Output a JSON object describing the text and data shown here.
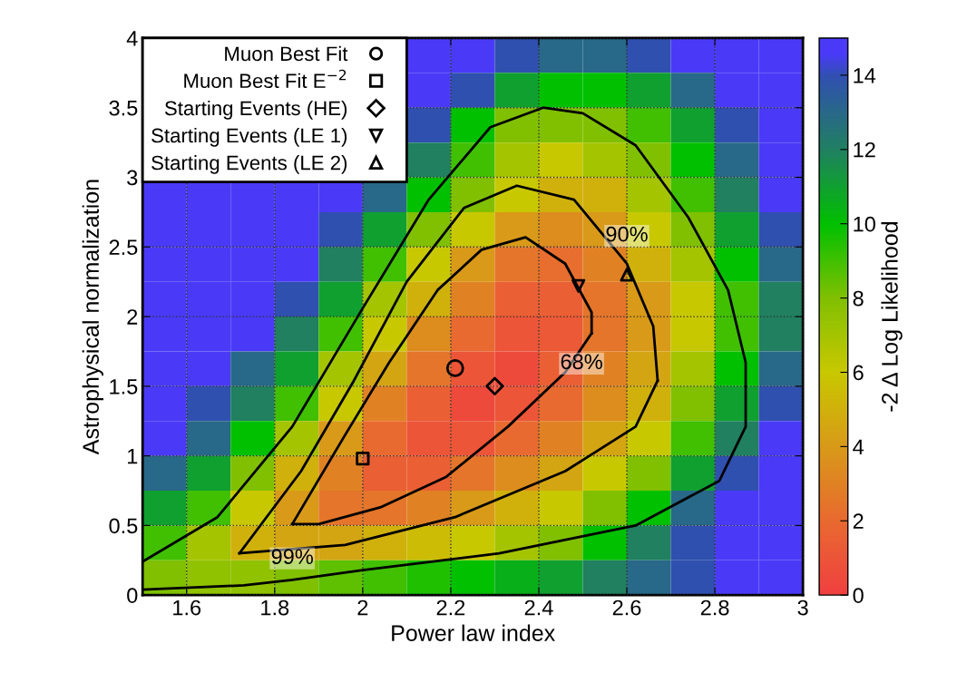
{
  "chart_data": {
    "type": "heatmap",
    "xlabel": "Power law index",
    "ylabel": "Astrophysical normalization",
    "clabel": "-2 Δ Log Likelihood",
    "x": [
      1.55,
      1.65,
      1.75,
      1.85,
      1.95,
      2.05,
      2.15,
      2.25,
      2.35,
      2.45,
      2.55,
      2.65,
      2.75,
      2.85,
      2.95
    ],
    "y": [
      3.875,
      3.625,
      3.375,
      3.125,
      2.875,
      2.625,
      2.375,
      2.125,
      1.875,
      1.625,
      1.375,
      1.125,
      0.875,
      0.625,
      0.375,
      0.125
    ],
    "cells": [
      [
        null,
        null,
        null,
        null,
        null,
        null,
        15,
        15,
        14,
        13,
        13,
        14,
        15,
        15,
        15
      ],
      [
        null,
        null,
        null,
        null,
        null,
        null,
        15,
        14,
        11,
        10,
        10,
        11,
        13,
        15,
        15
      ],
      [
        null,
        null,
        null,
        null,
        null,
        null,
        14,
        10,
        8,
        8,
        8,
        9,
        11,
        14,
        15
      ],
      [
        null,
        null,
        null,
        null,
        null,
        null,
        12,
        9,
        7,
        6,
        7,
        8,
        10,
        13,
        15
      ],
      [
        15,
        15,
        15,
        15,
        15,
        13,
        10,
        8,
        6,
        5,
        5,
        7,
        9,
        12,
        15
      ],
      [
        15,
        15,
        15,
        15,
        14,
        11,
        8,
        6,
        4,
        3.5,
        4,
        6,
        8,
        11,
        14
      ],
      [
        15,
        15,
        15,
        15,
        12,
        9,
        6,
        4,
        2.5,
        2.2,
        3,
        5,
        7,
        10,
        13
      ],
      [
        15,
        15,
        15,
        14,
        11,
        7,
        5,
        3,
        1.5,
        1.5,
        2.5,
        4,
        6,
        9,
        12
      ],
      [
        15,
        15,
        15,
        12,
        9,
        6,
        3.5,
        2,
        1,
        1.2,
        2.5,
        4,
        6,
        9,
        12
      ],
      [
        15,
        15,
        13,
        11,
        7,
        4.5,
        2.5,
        1,
        0.5,
        1.5,
        3,
        4.5,
        7,
        10,
        13
      ],
      [
        15,
        14,
        12,
        9,
        6,
        3,
        1.5,
        0.5,
        1,
        2,
        3.5,
        5,
        8,
        11,
        14
      ],
      [
        15,
        13,
        10,
        7,
        4,
        2,
        1,
        1,
        2,
        3,
        4.5,
        6,
        9,
        12,
        15
      ],
      [
        13,
        11,
        8,
        5,
        3,
        1.5,
        1.5,
        2.5,
        3.5,
        4.5,
        6,
        8,
        11,
        14,
        15
      ],
      [
        11,
        9,
        6,
        4,
        2.5,
        2.5,
        3,
        4,
        5,
        6,
        8,
        10,
        13,
        15,
        15
      ],
      [
        9,
        7,
        5,
        4.5,
        4.5,
        5,
        5.5,
        6,
        7,
        8,
        10,
        12,
        14,
        15,
        15
      ],
      [
        8,
        7.5,
        7.5,
        8,
        8.5,
        9,
        9.5,
        10,
        10.5,
        11,
        12,
        13,
        14,
        15,
        15
      ]
    ],
    "clim": [
      0,
      15
    ],
    "cticks": [
      0,
      2,
      4,
      6,
      8,
      10,
      12,
      14
    ],
    "xlim": [
      1.5,
      3
    ],
    "xticks": [
      1.6,
      1.8,
      2,
      2.2,
      2.4,
      2.6,
      2.8,
      3
    ],
    "ylim": [
      0,
      4
    ],
    "yticks": [
      0,
      0.5,
      1,
      1.5,
      2,
      2.5,
      3,
      3.5,
      4
    ],
    "grid": true,
    "legend": "top left",
    "series": [
      {
        "type": "line",
        "color": "#000000",
        "line_style": "solid",
        "x": [
          1.84,
          1.96,
          2.06,
          2.17,
          2.27,
          2.37,
          2.46,
          2.52,
          2.52
        ],
        "values": [
          0.51,
          1.15,
          1.67,
          2.19,
          2.48,
          2.57,
          2.38,
          2.03,
          1.88
        ]
      },
      {
        "type": "line",
        "color": "#000000",
        "line_style": "solid",
        "x": [
          2.52,
          2.46,
          2.33,
          2.19,
          2.04,
          1.9,
          1.84
        ],
        "values": [
          1.88,
          1.6,
          1.21,
          0.85,
          0.63,
          0.51,
          0.51
        ]
      },
      {
        "type": "line",
        "color": "#000000",
        "line_style": "solid",
        "x": [
          1.72,
          1.86,
          1.98,
          2.1,
          2.23,
          2.35,
          2.48,
          2.6,
          2.66,
          2.67
        ],
        "values": [
          0.3,
          0.89,
          1.54,
          2.25,
          2.78,
          2.94,
          2.84,
          2.38,
          1.93,
          1.54
        ]
      },
      {
        "type": "line",
        "color": "#000000",
        "line_style": "solid",
        "x": [
          2.67,
          2.62,
          2.46,
          2.21,
          1.96,
          1.72
        ],
        "values": [
          1.54,
          1.21,
          0.89,
          0.56,
          0.36,
          0.3
        ]
      },
      {
        "type": "line",
        "color": "#000000",
        "line_style": "solid",
        "x": [
          1.5,
          1.73,
          1.84,
          2.0,
          2.31,
          2.62,
          2.81,
          2.87,
          2.87,
          2.83,
          2.74,
          2.62,
          2.5,
          2.41,
          2.29,
          2.15,
          2.0,
          1.84,
          1.67,
          1.5
        ],
        "values": [
          0.04,
          0.07,
          0.11,
          0.18,
          0.3,
          0.5,
          0.82,
          1.21,
          1.67,
          2.19,
          2.71,
          3.23,
          3.46,
          3.5,
          3.36,
          2.84,
          2.06,
          1.21,
          0.56,
          0.24
        ]
      },
      {
        "type": "scatter",
        "name": "Muon Best Fit",
        "marker": "circle",
        "color": "#000000",
        "x": [
          2.21
        ],
        "values": [
          1.63
        ]
      },
      {
        "type": "scatter",
        "name": "Muon Best Fit E$^{−2}$",
        "marker": "square",
        "color": "#000000",
        "x": [
          2.0
        ],
        "values": [
          0.98
        ]
      },
      {
        "type": "scatter",
        "name": "Starting Events (HE)",
        "marker": "diamond",
        "color": "#000000",
        "x": [
          2.3
        ],
        "values": [
          1.5
        ]
      },
      {
        "type": "scatter",
        "name": "Starting Events (LE 1)",
        "marker": "triangle_down",
        "color": "#000000",
        "x": [
          2.49
        ],
        "values": [
          2.22
        ]
      },
      {
        "type": "scatter",
        "name": "Starting Events (LE 2)",
        "marker": "triangle",
        "color": "#000000",
        "x": [
          2.6
        ],
        "values": [
          2.3
        ]
      }
    ],
    "annotations": [
      {
        "text": "68%",
        "x": 2.52,
        "y": 1.88
      },
      {
        "text": "90%",
        "x": 2.6,
        "y": 2.38
      },
      {
        "text": "99%",
        "x": 1.84,
        "y": 0.11
      }
    ]
  }
}
